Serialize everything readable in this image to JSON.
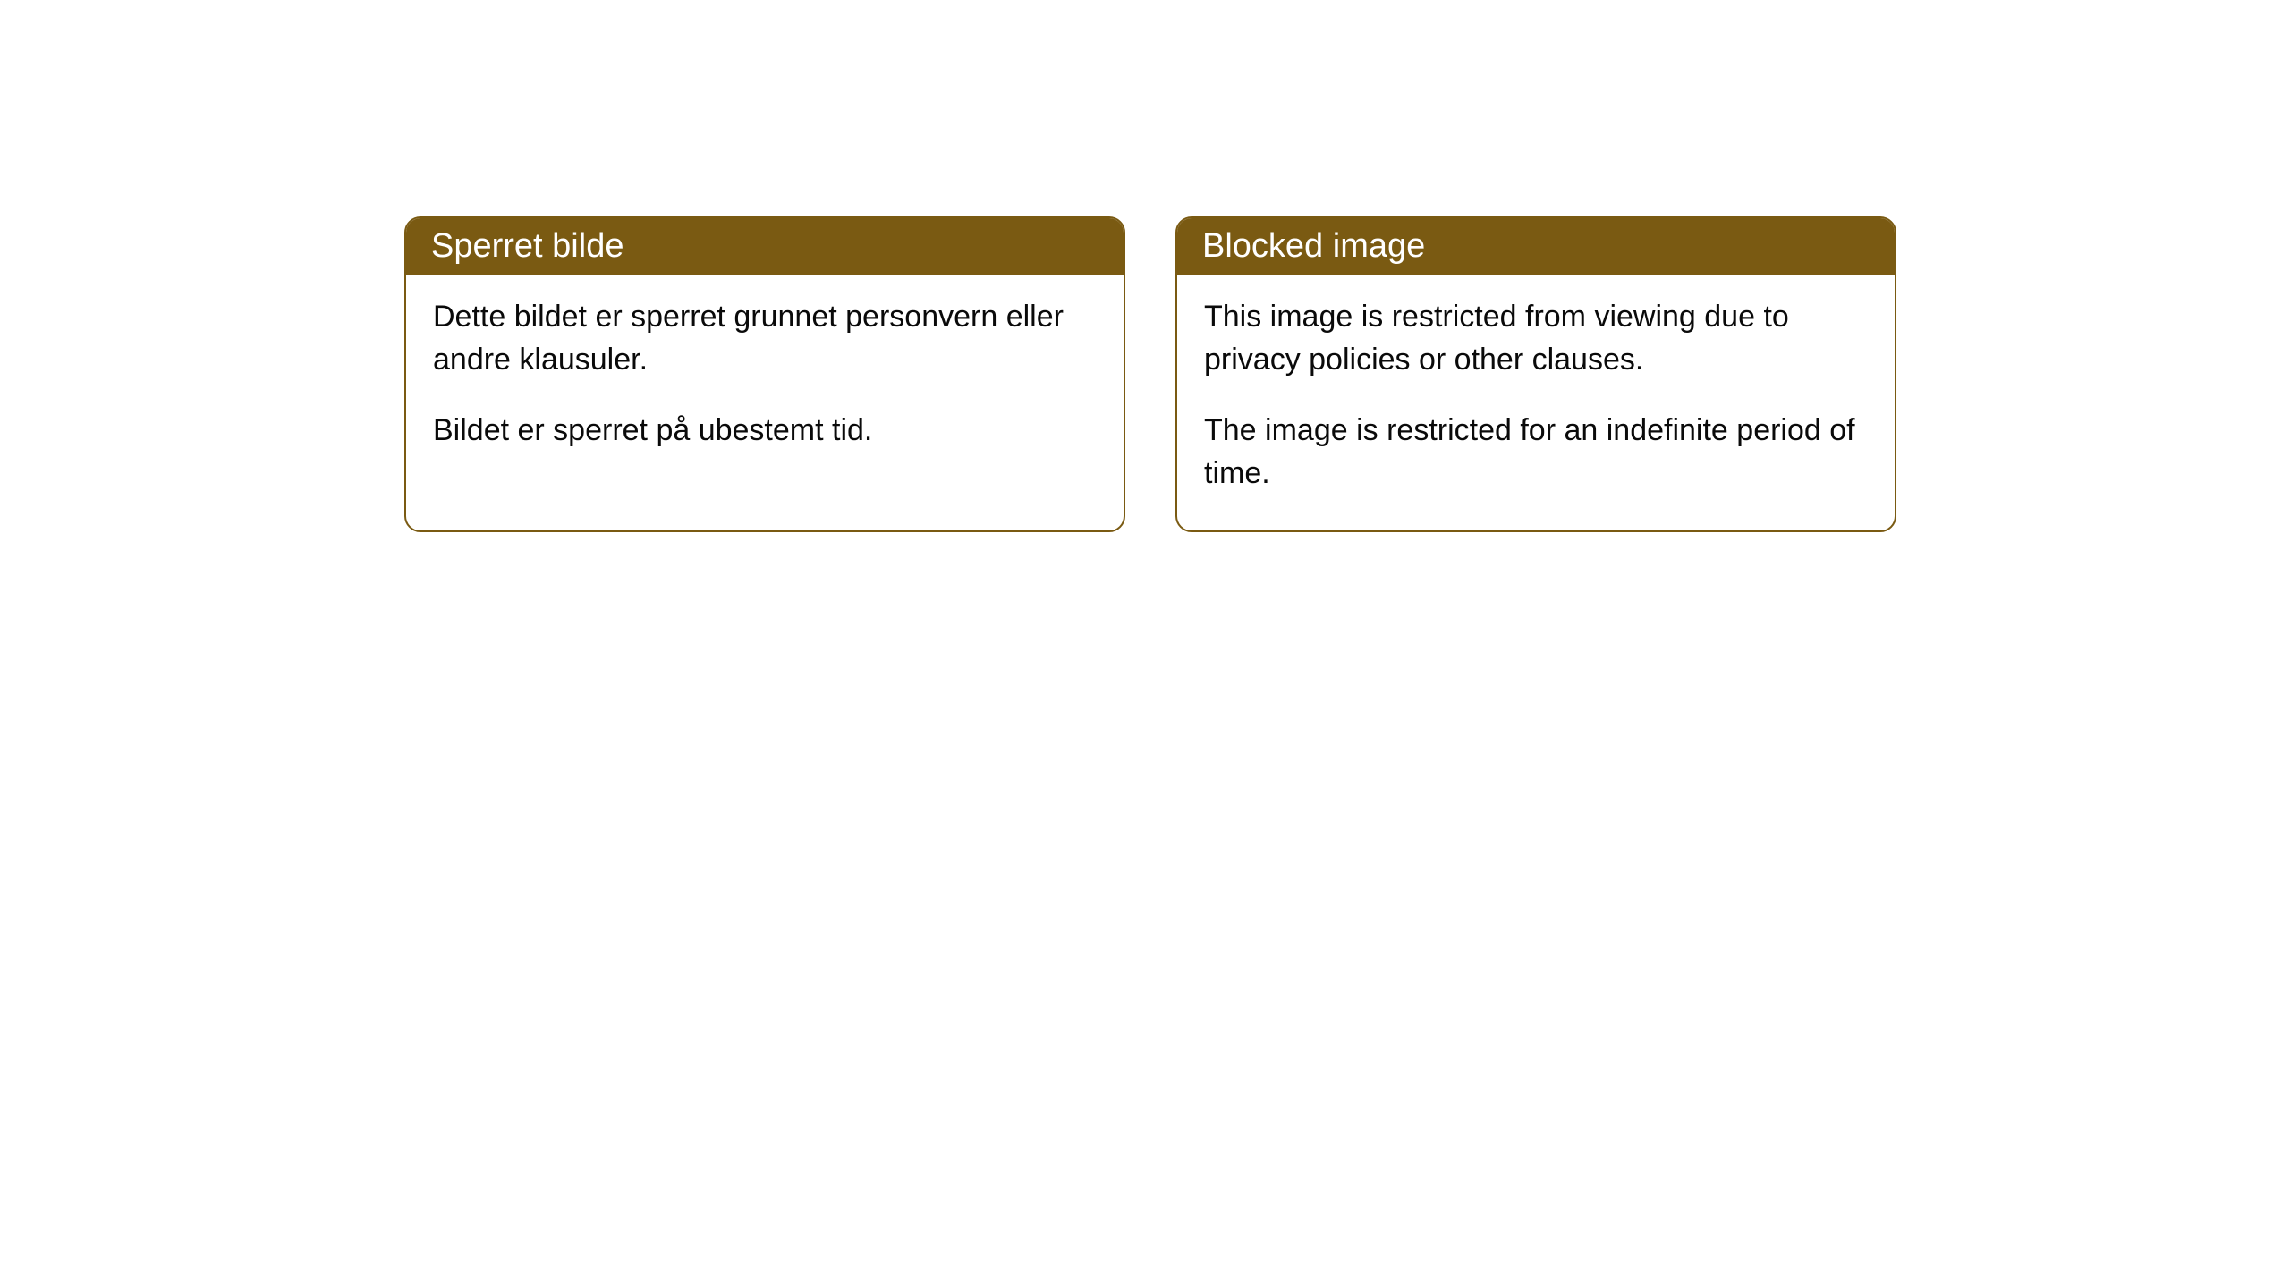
{
  "cards": [
    {
      "title": "Sperret bilde",
      "paragraph1": "Dette bildet er sperret grunnet personvern eller andre klausuler.",
      "paragraph2": "Bildet er sperret på ubestemt tid."
    },
    {
      "title": "Blocked image",
      "paragraph1": "This image is restricted from viewing due to privacy policies or other clauses.",
      "paragraph2": "The image is restricted for an indefinite period of time."
    }
  ],
  "style": {
    "header_bg_color": "#7a5a12",
    "header_text_color": "#ffffff",
    "border_color": "#7a5a12",
    "body_text_color": "#0a0a0a",
    "background_color": "#ffffff",
    "border_radius": 18,
    "header_fontsize": 38,
    "body_fontsize": 34
  }
}
